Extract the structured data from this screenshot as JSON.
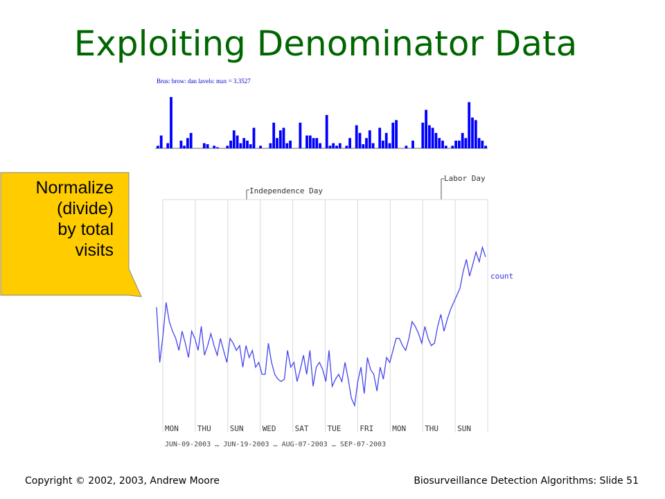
{
  "slide": {
    "title": "Exploiting Denominator Data",
    "callout_lines": [
      "Normalize",
      "(divide)",
      "by total",
      "visits"
    ],
    "footer_left": "Copyright © 2002, 2003, Andrew  Moore",
    "footer_right": "Biosurveillance Detection Algorithms: Slide 51",
    "colors": {
      "title": "#006600",
      "callout_fill": "#FFCC00",
      "series": "#0000FF",
      "line": "#4444EE"
    }
  },
  "chart_data": [
    {
      "type": "bar",
      "title": "Brus: brow: dan lavels: max = 3.3527",
      "values": [
        0.05,
        0.25,
        0,
        0.1,
        1,
        0,
        0,
        0.15,
        0.05,
        0.2,
        0.3,
        0,
        0,
        0,
        0.1,
        0.08,
        0,
        0.05,
        0.02,
        0,
        0,
        0.05,
        0.15,
        0.35,
        0.25,
        0.1,
        0.2,
        0.15,
        0.08,
        0.4,
        0,
        0.05,
        0,
        0,
        0.1,
        0.5,
        0.2,
        0.35,
        0.4,
        0.1,
        0.15,
        0,
        0,
        0.5,
        0,
        0.25,
        0.25,
        0.2,
        0.2,
        0.1,
        0,
        0.65,
        0.05,
        0.1,
        0.05,
        0.1,
        0,
        0.05,
        0.2,
        0,
        0.45,
        0.3,
        0.08,
        0.2,
        0.35,
        0.1,
        0,
        0.4,
        0.15,
        0.3,
        0.1,
        0.5,
        0.55,
        0,
        0,
        0.05,
        0,
        0.15,
        0,
        0,
        0.5,
        0.75,
        0.45,
        0.4,
        0.3,
        0.2,
        0.15,
        0.05,
        0,
        0.05,
        0.15,
        0.15,
        0.3,
        0.2,
        0.9,
        0.6,
        0.55,
        0.2,
        0.15,
        0.05
      ]
    },
    {
      "type": "line",
      "series": [
        {
          "name": "count",
          "values": [
            0.43,
            0.2,
            0.31,
            0.45,
            0.37,
            0.33,
            0.3,
            0.25,
            0.33,
            0.28,
            0.22,
            0.33,
            0.3,
            0.25,
            0.35,
            0.23,
            0.27,
            0.32,
            0.27,
            0.23,
            0.3,
            0.25,
            0.2,
            0.3,
            0.28,
            0.25,
            0.27,
            0.18,
            0.27,
            0.22,
            0.25,
            0.18,
            0.2,
            0.15,
            0.15,
            0.28,
            0.2,
            0.15,
            0.13,
            0.12,
            0.13,
            0.25,
            0.18,
            0.2,
            0.12,
            0.17,
            0.23,
            0.15,
            0.25,
            0.1,
            0.18,
            0.2,
            0.17,
            0.12,
            0.25,
            0.1,
            0.13,
            0.15,
            0.12,
            0.2,
            0.13,
            0.05,
            0.02,
            0.12,
            0.18,
            0.07,
            0.22,
            0.17,
            0.15,
            0.08,
            0.18,
            0.13,
            0.22,
            0.2,
            0.25,
            0.3,
            0.3,
            0.27,
            0.25,
            0.3,
            0.37,
            0.35,
            0.32,
            0.28,
            0.35,
            0.3,
            0.27,
            0.28,
            0.35,
            0.4,
            0.33,
            0.38,
            0.42,
            0.45,
            0.48,
            0.51,
            0.58,
            0.63,
            0.56,
            0.61,
            0.66,
            0.62,
            0.68,
            0.64
          ]
        }
      ],
      "x_tick_days": [
        "MON",
        "THU",
        "SUN",
        "WED",
        "SAT",
        "TUE",
        "FRI",
        "MON",
        "THU",
        "SUN"
      ],
      "x_tick_dates_text": "JUN-09-2003 … JUN-19-2003 … AUG-07-2003 … SEP-07-2003",
      "annotations": [
        "Independence Day",
        "Labor Day"
      ],
      "grid": true
    }
  ]
}
